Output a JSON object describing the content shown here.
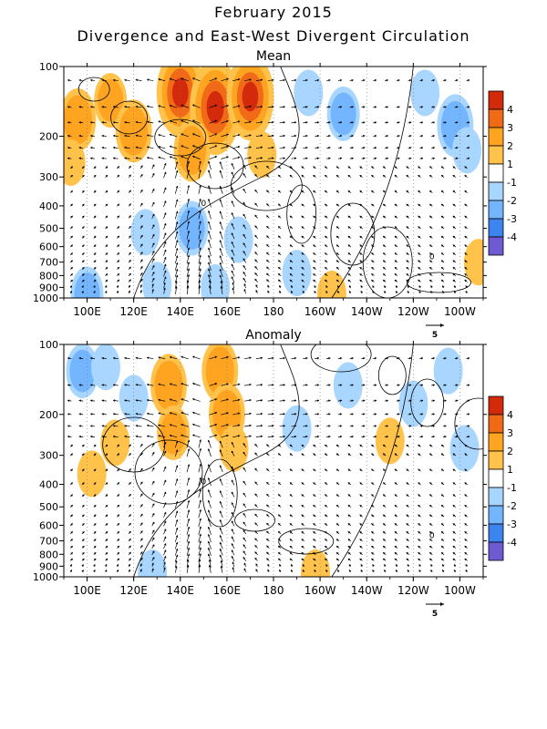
{
  "title": "February 2015",
  "subtitle": "Divergence and East-West Divergent Circulation",
  "colors": {
    "positive": [
      "#ffc24a",
      "#ffa421",
      "#f06a18",
      "#d42a0c"
    ],
    "negative": [
      "#a9d6ff",
      "#73b6ff",
      "#3c84f0",
      "#6e5ad2"
    ],
    "contour": "#000000",
    "vector": "#000000"
  },
  "chart_data": [
    {
      "type": "heatmap",
      "panel": "Mean",
      "title": "Mean",
      "x_ticks": [
        "100E",
        "120E",
        "140E",
        "160E",
        "180",
        "160W",
        "140W",
        "120W",
        "100W"
      ],
      "y_ticks": [
        "100",
        "200",
        "300",
        "400",
        "500",
        "600",
        "700",
        "800",
        "900",
        "1000"
      ],
      "xlim": [
        "90E",
        "90W"
      ],
      "ylim": [
        1000,
        100
      ],
      "y_scale": "log",
      "grid": "dotted longitude lines",
      "contour_label": "0",
      "vector_reference": "5",
      "colorbar": {
        "labels": [
          "4",
          "3",
          "2",
          "1",
          "-1",
          "-2",
          "-3",
          "-4"
        ],
        "placement": "right"
      },
      "fields": [
        {
          "lon": 96,
          "p": 170,
          "value": 2.5
        },
        {
          "lon": 93,
          "p": 260,
          "value": 1.5
        },
        {
          "lon": 110,
          "p": 140,
          "value": 2
        },
        {
          "lon": 120,
          "p": 190,
          "value": 2.5
        },
        {
          "lon": 140,
          "p": 130,
          "value": 4
        },
        {
          "lon": 155,
          "p": 150,
          "value": 4.5
        },
        {
          "lon": 170,
          "p": 135,
          "value": 4
        },
        {
          "lon": 145,
          "p": 230,
          "value": 2.5
        },
        {
          "lon": 175,
          "p": 240,
          "value": 1.5
        },
        {
          "lon": 195,
          "p": 130,
          "value": -1.5
        },
        {
          "lon": 210,
          "p": 160,
          "value": -2
        },
        {
          "lon": 245,
          "p": 130,
          "value": -1.5
        },
        {
          "lon": 258,
          "p": 180,
          "value": -2.5
        },
        {
          "lon": 263,
          "p": 230,
          "value": -1.5
        },
        {
          "lon": 125,
          "p": 520,
          "value": -1.5
        },
        {
          "lon": 145,
          "p": 500,
          "value": -2
        },
        {
          "lon": 165,
          "p": 560,
          "value": -1.5
        },
        {
          "lon": 190,
          "p": 780,
          "value": -1.5
        },
        {
          "lon": 130,
          "p": 880,
          "value": -1.5
        },
        {
          "lon": 100,
          "p": 960,
          "value": -2
        },
        {
          "lon": 155,
          "p": 900,
          "value": -1.5
        },
        {
          "lon": 205,
          "p": 960,
          "value": 1.5
        },
        {
          "lon": 268,
          "p": 700,
          "value": 1.5
        }
      ]
    },
    {
      "type": "heatmap",
      "panel": "Anomaly",
      "title": "Anomaly",
      "x_ticks": [
        "100E",
        "120E",
        "140E",
        "160E",
        "180",
        "160W",
        "140W",
        "120W",
        "100W"
      ],
      "y_ticks": [
        "100",
        "200",
        "300",
        "400",
        "500",
        "600",
        "700",
        "800",
        "900",
        "1000"
      ],
      "xlim": [
        "90E",
        "90W"
      ],
      "ylim": [
        1000,
        100
      ],
      "y_scale": "log",
      "grid": "dotted longitude lines",
      "contour_label": "0",
      "vector_reference": "5",
      "colorbar": {
        "labels": [
          "4",
          "3",
          "2",
          "1",
          "-1",
          "-2",
          "-3",
          "-4"
        ],
        "placement": "right"
      },
      "fields": [
        {
          "lon": 98,
          "p": 130,
          "value": -2
        },
        {
          "lon": 108,
          "p": 125,
          "value": -1.5
        },
        {
          "lon": 120,
          "p": 170,
          "value": -1.5
        },
        {
          "lon": 102,
          "p": 360,
          "value": 1.5
        },
        {
          "lon": 112,
          "p": 265,
          "value": 1.5
        },
        {
          "lon": 135,
          "p": 150,
          "value": 2.5
        },
        {
          "lon": 137,
          "p": 240,
          "value": 2
        },
        {
          "lon": 157,
          "p": 130,
          "value": 2.5
        },
        {
          "lon": 160,
          "p": 200,
          "value": 2.5
        },
        {
          "lon": 163,
          "p": 280,
          "value": 1.5
        },
        {
          "lon": 190,
          "p": 230,
          "value": -1.5
        },
        {
          "lon": 212,
          "p": 150,
          "value": -1.5
        },
        {
          "lon": 230,
          "p": 260,
          "value": 1.5
        },
        {
          "lon": 255,
          "p": 130,
          "value": -1.5
        },
        {
          "lon": 262,
          "p": 280,
          "value": -1.5
        },
        {
          "lon": 240,
          "p": 180,
          "value": -1.5
        },
        {
          "lon": 198,
          "p": 960,
          "value": 1.5
        },
        {
          "lon": 128,
          "p": 960,
          "value": -1.5
        }
      ]
    }
  ]
}
